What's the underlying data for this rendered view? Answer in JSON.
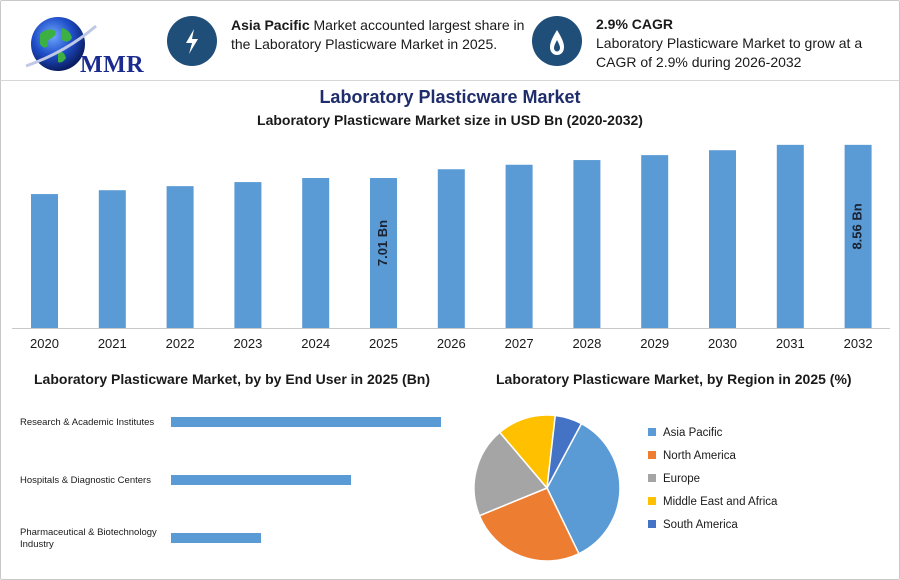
{
  "header": {
    "logo_text": "MMR",
    "info1_bold": "Asia Pacific",
    "info1_text": " Market accounted largest share in the Laboratory Plasticware Market in 2025.",
    "info2_title": "2.9% CAGR",
    "info2_text": "Laboratory Plasticware Market to grow at a CAGR of 2.9% during 2026-2032",
    "icon_color": "#1f4e79"
  },
  "title": "Laboratory Plasticware Market",
  "chart_data": [
    {
      "type": "bar",
      "title": "Laboratory Plasticware Market size in USD Bn (2020-2032)",
      "categories": [
        "2020",
        "2021",
        "2022",
        "2023",
        "2024",
        "2025",
        "2026",
        "2027",
        "2028",
        "2029",
        "2030",
        "2031",
        "2032"
      ],
      "values": [
        6.26,
        6.44,
        6.63,
        6.82,
        7.01,
        7.01,
        7.42,
        7.63,
        7.85,
        8.08,
        8.31,
        8.56,
        8.56
      ],
      "data_labels": [
        {
          "category": "2025",
          "label": "7.01 Bn"
        },
        {
          "category": "2032",
          "label": "8.56 Bn"
        }
      ],
      "color": "#5b9bd5",
      "ylim": [
        0,
        8.6
      ]
    },
    {
      "type": "bar",
      "orientation": "horizontal",
      "title": "Laboratory Plasticware Market, by by End User in 2025 (Bn)",
      "categories": [
        "Research & Academic Institutes",
        "Hospitals & Diagnostic Centers",
        "Pharmaceutical & Biotechnology Industry"
      ],
      "values": [
        3.0,
        2.0,
        1.0
      ],
      "color": "#5b9bd5"
    },
    {
      "type": "pie",
      "title": "Laboratory Plasticware Market, by Region in 2025 (%)",
      "categories": [
        "Asia Pacific",
        "North America",
        "Europe",
        "Middle East and Africa",
        "South America"
      ],
      "values": [
        35,
        26,
        20,
        13,
        6
      ],
      "colors": [
        "#5b9bd5",
        "#ed7d31",
        "#a5a5a5",
        "#ffc000",
        "#4472c4"
      ],
      "legend": "right"
    }
  ]
}
